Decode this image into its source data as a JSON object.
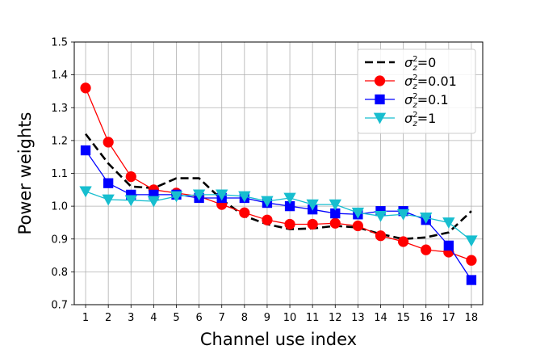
{
  "chart_data": {
    "type": "line",
    "xlabel": "Channel use index",
    "ylabel": "Power weights",
    "ylim": [
      0.7,
      1.5
    ],
    "xlim": [
      0.5,
      18.5
    ],
    "yticks": [
      "0.7",
      "0.8",
      "0.9",
      "1.0",
      "1.1",
      "1.2",
      "1.3",
      "1.4",
      "1.5"
    ],
    "x": [
      1,
      2,
      3,
      4,
      5,
      6,
      7,
      8,
      9,
      10,
      11,
      12,
      13,
      14,
      15,
      16,
      17,
      18
    ],
    "grid": true,
    "legend_position": "top-right",
    "series": [
      {
        "name": "σ²z=0",
        "name_base": "σ",
        "name_sup": "2",
        "name_sub": "z",
        "name_rest": "=0",
        "color": "#000000",
        "style": "dashed",
        "marker": "none",
        "values": [
          1.22,
          1.13,
          1.06,
          1.055,
          1.085,
          1.085,
          1.02,
          0.97,
          0.945,
          0.93,
          0.932,
          0.94,
          0.935,
          0.915,
          0.9,
          0.905,
          0.92,
          0.985
        ]
      },
      {
        "name": "σ²z=0.01",
        "name_base": "σ",
        "name_sup": "2",
        "name_sub": "z",
        "name_rest": "=0.01",
        "color": "#ff0000",
        "style": "solid",
        "marker": "circle",
        "values": [
          1.36,
          1.195,
          1.09,
          1.05,
          1.04,
          1.03,
          1.005,
          0.98,
          0.958,
          0.945,
          0.945,
          0.948,
          0.94,
          0.91,
          0.892,
          0.867,
          0.86,
          0.835
        ]
      },
      {
        "name": "σ²z=0.1",
        "name_base": "σ",
        "name_sup": "2",
        "name_sub": "z",
        "name_rest": "=0.1",
        "color": "#0000ff",
        "style": "solid",
        "marker": "square",
        "values": [
          1.17,
          1.07,
          1.035,
          1.035,
          1.035,
          1.025,
          1.025,
          1.025,
          1.01,
          1.0,
          0.99,
          0.978,
          0.975,
          0.985,
          0.985,
          0.958,
          0.88,
          0.775
        ]
      },
      {
        "name": "σ²z=1",
        "name_base": "σ",
        "name_sup": "2",
        "name_sub": "z",
        "name_rest": "=1",
        "color": "#17becf",
        "style": "solid",
        "marker": "triangle-down",
        "values": [
          1.045,
          1.02,
          1.018,
          1.015,
          1.03,
          1.035,
          1.035,
          1.03,
          1.015,
          1.025,
          1.005,
          1.005,
          0.98,
          0.97,
          0.975,
          0.965,
          0.95,
          0.895
        ]
      }
    ]
  }
}
